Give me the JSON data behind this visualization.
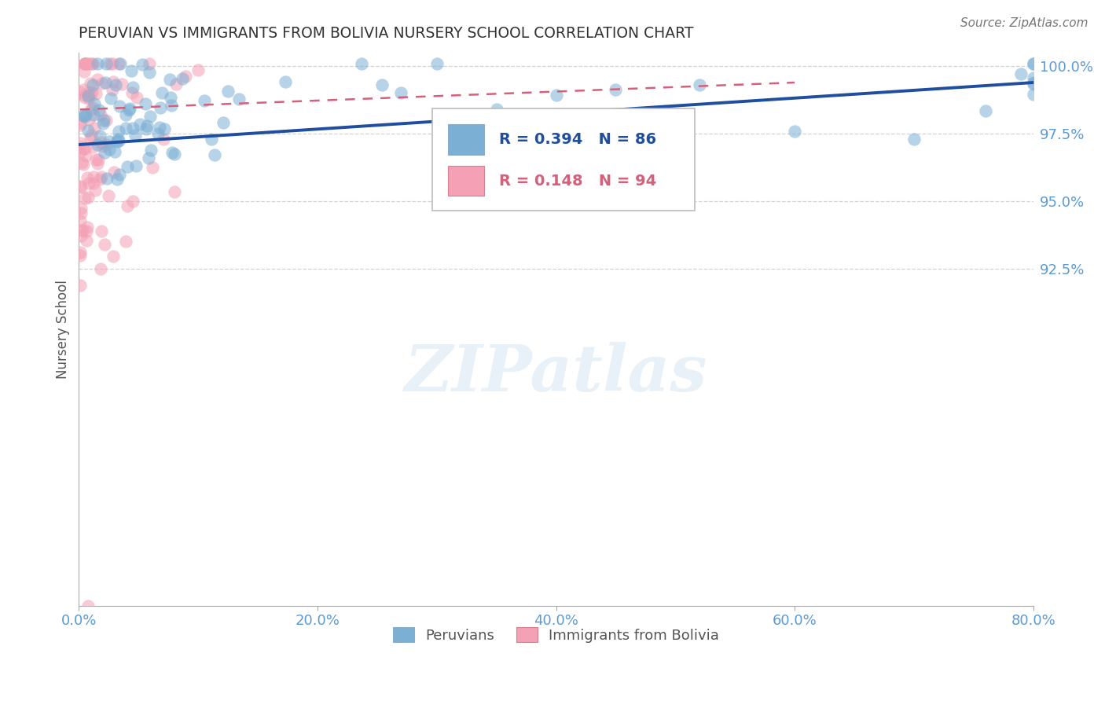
{
  "title": "PERUVIAN VS IMMIGRANTS FROM BOLIVIA NURSERY SCHOOL CORRELATION CHART",
  "source": "Source: ZipAtlas.com",
  "ylabel": "Nursery School",
  "xmin": 0.0,
  "xmax": 0.8,
  "ymin": 0.8,
  "ymax": 1.005,
  "ytick_vals": [
    0.925,
    0.95,
    0.975,
    1.0
  ],
  "ytick_labels": [
    "92.5%",
    "95.0%",
    "97.5%",
    "100.0%"
  ],
  "xtick_vals": [
    0.0,
    0.2,
    0.4,
    0.6,
    0.8
  ],
  "xtick_labels": [
    "0.0%",
    "20.0%",
    "40.0%",
    "60.0%",
    "80.0%"
  ],
  "blue_R": 0.394,
  "blue_N": 86,
  "pink_R": 0.148,
  "pink_N": 94,
  "blue_color": "#7bafd4",
  "pink_color": "#f4a0b5",
  "blue_line_color": "#1f4e9e",
  "pink_line_color": "#d4607a",
  "tick_color": "#5b9bd5",
  "watermark": "ZIPatlas",
  "legend_blue_label": "Peruvians",
  "legend_pink_label": "Immigrants from Bolivia"
}
